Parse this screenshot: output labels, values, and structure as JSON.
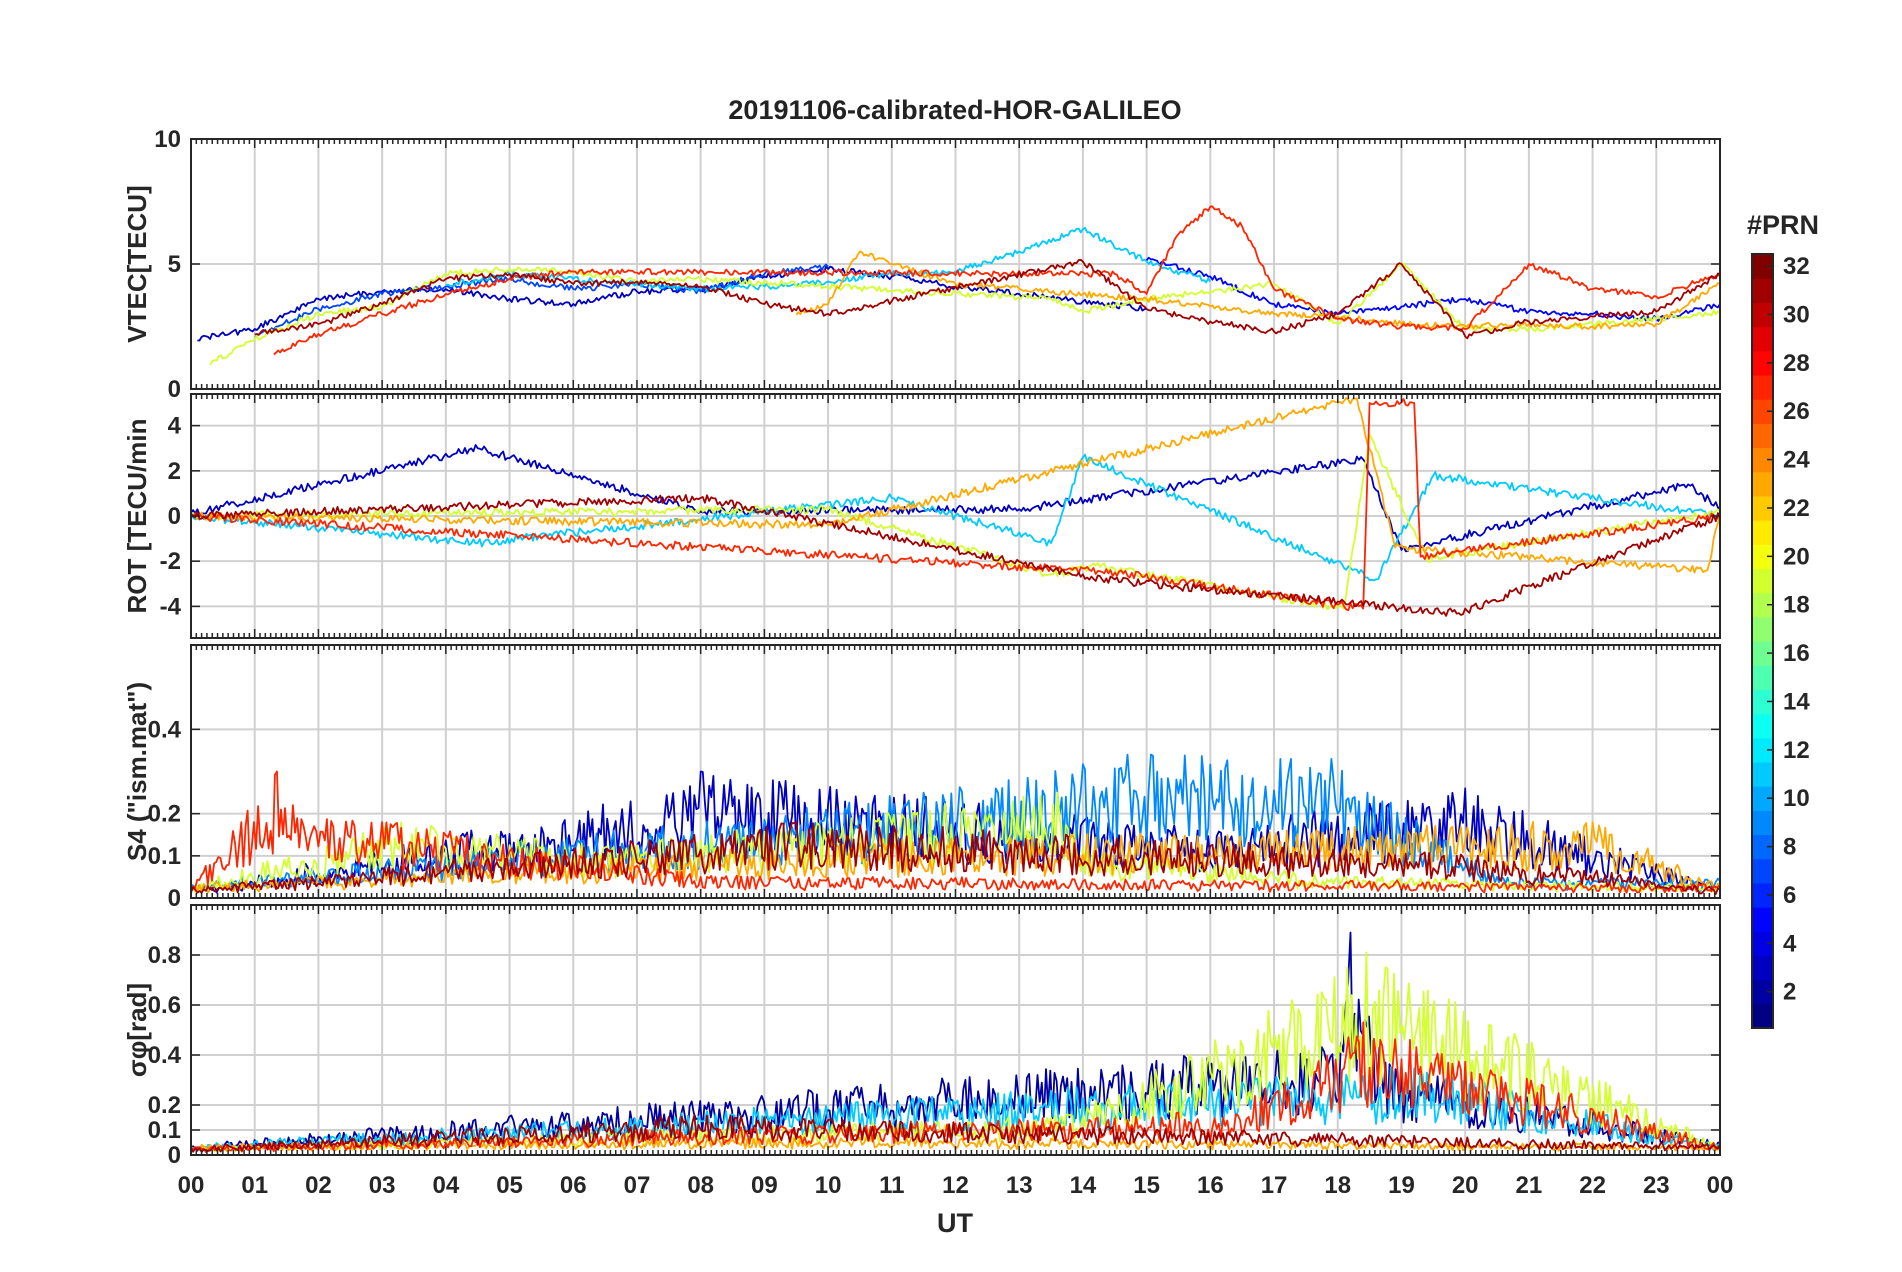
{
  "chart_data": {
    "type": "line",
    "title": "20191106-calibrated-HOR-GALILEO",
    "xlabel": "UT",
    "x_ticks": [
      "00",
      "01",
      "02",
      "03",
      "04",
      "05",
      "06",
      "07",
      "08",
      "09",
      "10",
      "11",
      "12",
      "13",
      "14",
      "15",
      "16",
      "17",
      "18",
      "19",
      "20",
      "21",
      "22",
      "23",
      "00"
    ],
    "xlim": [
      0,
      24
    ],
    "grid": true,
    "colorbar": {
      "title": "#PRN",
      "range": [
        1,
        32
      ],
      "ticks": [
        "2",
        "4",
        "6",
        "8",
        "10",
        "12",
        "14",
        "16",
        "18",
        "20",
        "22",
        "24",
        "26",
        "28",
        "30",
        "32"
      ],
      "colormap": "jet",
      "location": "right"
    },
    "panels": [
      {
        "ylabel": "VTEC[TECU]",
        "ylim": [
          0,
          10
        ],
        "y_ticks": [
          "0",
          "5",
          "10"
        ],
        "series": [
          {
            "prn": 3,
            "x": [
              0.1,
              1.0,
              2.0,
              3.0,
              4.0,
              5.0,
              6.0,
              7.0,
              8.0,
              9.0,
              10.0,
              11.0,
              12.0,
              13.0,
              14.0,
              15.0
            ],
            "y": [
              2.0,
              2.4,
              3.6,
              3.9,
              4.0,
              3.6,
              3.4,
              3.9,
              4.0,
              4.5,
              4.8,
              4.5,
              4.1,
              3.8,
              3.5,
              3.2
            ]
          },
          {
            "prn": 5,
            "x": [
              15.0,
              16.0,
              17.0,
              18.0,
              19.0,
              20.0,
              21.0,
              22.0,
              23.0,
              24.0
            ],
            "y": [
              5.2,
              4.5,
              3.4,
              3.0,
              3.3,
              3.6,
              3.1,
              3.0,
              2.8,
              3.4
            ]
          },
          {
            "prn": 7,
            "x": [
              1.0,
              2.0,
              3.0,
              4.0,
              5.0,
              6.0,
              7.0,
              8.0,
              9.0,
              10.0
            ],
            "y": [
              2.1,
              3.2,
              3.8,
              4.1,
              4.4,
              4.0,
              4.2,
              3.9,
              4.6,
              4.9
            ]
          },
          {
            "prn": 11,
            "x": [
              4.0,
              5.0,
              6.0,
              7.0,
              8.0,
              9.0,
              10.0,
              11.0,
              12.0,
              13.0,
              14.0,
              15.0,
              16.0
            ],
            "y": [
              4.2,
              4.6,
              4.4,
              4.2,
              4.0,
              4.1,
              4.3,
              4.6,
              4.7,
              5.5,
              6.4,
              5.1,
              4.3
            ]
          },
          {
            "prn": 19,
            "x": [
              0.3,
              1.0,
              2.0,
              3.0,
              4.0,
              5.0,
              6.0,
              7.0,
              8.0,
              13.5,
              14.0,
              15.0,
              16.0,
              17.0,
              18.0,
              19.0,
              20.0,
              21.0,
              22.0,
              23.0,
              24.0
            ],
            "y": [
              1.0,
              2.0,
              3.0,
              3.3,
              4.6,
              4.8,
              4.7,
              4.3,
              4.4,
              3.6,
              3.1,
              3.6,
              3.9,
              4.2,
              2.6,
              5.0,
              2.4,
              2.4,
              2.6,
              2.8,
              3.1
            ]
          },
          {
            "prn": 23,
            "x": [
              9.5,
              10.0,
              10.5,
              11.0,
              12.0,
              13.0,
              14.0,
              15.0,
              16.0,
              17.0,
              18.0,
              19.0,
              20.0,
              21.0,
              22.0,
              23.0,
              24.0
            ],
            "y": [
              3.0,
              3.4,
              5.5,
              5.0,
              4.2,
              4.0,
              3.8,
              3.6,
              3.3,
              3.0,
              2.9,
              2.6,
              2.5,
              2.6,
              2.5,
              2.6,
              4.2
            ]
          },
          {
            "prn": 27,
            "x": [
              1.3,
              2.0,
              3.0,
              4.0,
              5.0,
              6.0,
              14.5,
              15.0,
              15.5,
              16.0,
              16.5,
              17.0,
              18.0,
              19.0,
              20.0,
              21.0,
              22.0,
              23.0,
              24.0
            ],
            "y": [
              1.4,
              2.2,
              3.0,
              3.8,
              4.4,
              4.7,
              4.6,
              3.8,
              6.2,
              7.3,
              6.5,
              4.0,
              2.8,
              2.5,
              2.4,
              5.0,
              4.0,
              3.7,
              4.6
            ]
          },
          {
            "prn": 31,
            "x": [
              1.0,
              2.0,
              3.0,
              4.0,
              5.0,
              6.0,
              7.0,
              8.0,
              9.0,
              10.0,
              14.0,
              15.0,
              16.0,
              17.0,
              18.0,
              19.0,
              20.0,
              21.0,
              22.0,
              23.0,
              24.0
            ],
            "y": [
              2.2,
              2.6,
              3.4,
              4.4,
              4.6,
              4.2,
              4.3,
              4.1,
              3.4,
              3.0,
              5.1,
              3.2,
              2.7,
              2.3,
              3.0,
              5.0,
              2.1,
              2.7,
              2.9,
              3.1,
              4.6
            ]
          }
        ]
      },
      {
        "ylabel": "ROT [TECU/min",
        "ylim": [
          -5.4,
          5.4
        ],
        "y_ticks": [
          "-4",
          "-2",
          "0",
          "2",
          "4"
        ],
        "series": [
          {
            "prn": 3,
            "x": [
              0,
              4.5,
              8,
              13,
              18.4,
              19,
              23.5,
              24
            ],
            "y": [
              0.1,
              3.0,
              0.2,
              0.3,
              2.5,
              -1.5,
              1.4,
              0.3
            ]
          },
          {
            "prn": 11,
            "x": [
              0,
              4.5,
              11,
              13.5,
              14,
              18.6,
              19.5,
              24
            ],
            "y": [
              0.0,
              -1.2,
              0.8,
              -1.2,
              2.6,
              -2.8,
              1.8,
              0.0
            ]
          },
          {
            "prn": 19,
            "x": [
              0,
              10,
              13.5,
              14.2,
              18.1,
              18.5,
              19.4,
              24
            ],
            "y": [
              0.0,
              0.3,
              -2.6,
              -2.2,
              -4.1,
              3.6,
              -1.9,
              0.2
            ]
          },
          {
            "prn": 23,
            "x": [
              0,
              10,
              18.3,
              18.9,
              23.8,
              24
            ],
            "y": [
              0.0,
              -0.4,
              5.2,
              -1.4,
              -2.4,
              0.1
            ]
          },
          {
            "prn": 27,
            "x": [
              0,
              14.5,
              18.4,
              18.5,
              19.2,
              19.3,
              24
            ],
            "y": [
              0.0,
              -2.5,
              -4.1,
              5.0,
              5.0,
              -1.8,
              0.0
            ]
          },
          {
            "prn": 31,
            "x": [
              0,
              8,
              14.3,
              19.9,
              24
            ],
            "y": [
              0.0,
              0.8,
              -2.8,
              -4.3,
              0.0
            ]
          }
        ]
      },
      {
        "ylabel": "S4 (\"ism.mat\")",
        "ylim": [
          0,
          0.6
        ],
        "y_ticks": [
          "0",
          "0.1",
          "0.2",
          "0.4"
        ],
        "series": [
          {
            "prn": 3,
            "x": [
              0,
              4.4,
              5.2,
              8.0,
              15.8,
              20.0,
              23.0,
              24
            ],
            "y": [
              0.02,
              0.16,
              0.15,
              0.3,
              0.16,
              0.26,
              0.08,
              0.03
            ]
          },
          {
            "prn": 9,
            "x": [
              0,
              11.5,
              14.7,
              17.9,
              20.5,
              24
            ],
            "y": [
              0.03,
              0.25,
              0.34,
              0.33,
              0.05,
              0.04
            ]
          },
          {
            "prn": 19,
            "x": [
              0,
              3.3,
              6.5,
              13.6,
              14.0,
              18.0,
              24
            ],
            "y": [
              0.03,
              0.18,
              0.12,
              0.25,
              0.12,
              0.05,
              0.03
            ]
          },
          {
            "prn": 23,
            "x": [
              0,
              10.5,
              22.0,
              24
            ],
            "y": [
              0.03,
              0.13,
              0.18,
              0.03
            ]
          },
          {
            "prn": 27,
            "x": [
              0,
              1.35,
              1.6,
              8.0,
              24
            ],
            "y": [
              0.03,
              0.3,
              0.22,
              0.05,
              0.03
            ]
          },
          {
            "prn": 31,
            "x": [
              0,
              7.9,
              9.5,
              20.2,
              24
            ],
            "y": [
              0.02,
              0.15,
              0.18,
              0.1,
              0.02
            ]
          }
        ]
      },
      {
        "ylabel": "σφ[rad]",
        "ylim": [
          0,
          1.0
        ],
        "y_ticks": [
          "0",
          "0.1",
          "0.2",
          "0.4",
          "0.6",
          "0.8"
        ],
        "series": [
          {
            "prn": 2,
            "x": [
              0,
              18.05,
              18.2,
              18.75,
              19.0,
              24
            ],
            "y": [
              0.04,
              0.45,
              0.89,
              0.37,
              0.35,
              0.05
            ]
          },
          {
            "prn": 11,
            "x": [
              0,
              19.3,
              24
            ],
            "y": [
              0.04,
              0.36,
              0.04
            ]
          },
          {
            "prn": 19,
            "x": [
              0,
              13.8,
              18.15,
              18.45,
              24
            ],
            "y": [
              0.03,
              0.16,
              0.75,
              0.81,
              0.04
            ]
          },
          {
            "prn": 23,
            "x": [
              0,
              10.5,
              24
            ],
            "y": [
              0.04,
              0.07,
              0.04
            ]
          },
          {
            "prn": 27,
            "x": [
              0,
              15.5,
              16.2,
              18.4,
              24
            ],
            "y": [
              0.03,
              0.17,
              0.15,
              0.53,
              0.04
            ]
          },
          {
            "prn": 31,
            "x": [
              0,
              7.9,
              24
            ],
            "y": [
              0.03,
              0.16,
              0.04
            ]
          }
        ]
      }
    ]
  }
}
